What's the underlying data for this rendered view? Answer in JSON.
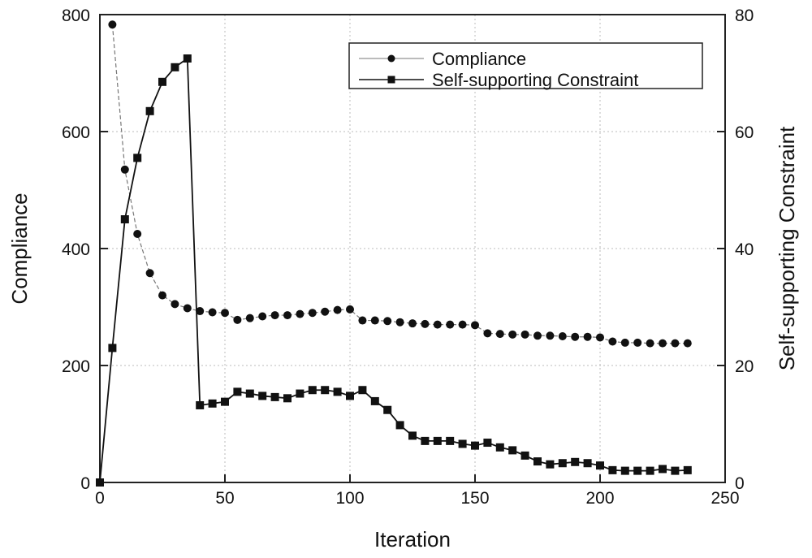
{
  "chart_data": {
    "type": "line",
    "xlabel": "Iteration",
    "ylabel": "Compliance",
    "y2label": "Self-supporting Constraint",
    "xlim": [
      0,
      250
    ],
    "ylim": [
      0,
      800
    ],
    "y2lim": [
      0,
      80
    ],
    "xticks": [
      0,
      50,
      100,
      150,
      200,
      250
    ],
    "yticks": [
      0,
      200,
      400,
      600,
      800
    ],
    "y2ticks": [
      0,
      20,
      40,
      60,
      80
    ],
    "grid": true,
    "legend": "top-right",
    "series": [
      {
        "name": "Compliance",
        "axis": "left",
        "marker": "circle",
        "color": "#777777",
        "x": [
          5,
          10,
          15,
          20,
          25,
          30,
          35,
          40,
          45,
          50,
          55,
          60,
          65,
          70,
          75,
          80,
          85,
          90,
          95,
          100,
          105,
          110,
          115,
          120,
          125,
          130,
          135,
          140,
          145,
          150,
          155,
          160,
          165,
          170,
          175,
          180,
          185,
          190,
          195,
          200,
          205,
          210,
          215,
          220,
          225,
          230,
          235
        ],
        "values": [
          783,
          535,
          425,
          358,
          320,
          305,
          298,
          293,
          291,
          290,
          278,
          281,
          284,
          286,
          286,
          288,
          290,
          292,
          295,
          296,
          277,
          277,
          276,
          274,
          272,
          271,
          270,
          270,
          270,
          269,
          255,
          254,
          253,
          253,
          251,
          251,
          250,
          249,
          249,
          248,
          241,
          239,
          239,
          238,
          238,
          238,
          238
        ]
      },
      {
        "name": "Self-supporting Constraint",
        "axis": "right",
        "marker": "square",
        "color": "#111111",
        "x": [
          0,
          5,
          10,
          15,
          20,
          25,
          30,
          35,
          40,
          45,
          50,
          55,
          60,
          65,
          70,
          75,
          80,
          85,
          90,
          95,
          100,
          105,
          110,
          115,
          120,
          125,
          130,
          135,
          140,
          145,
          150,
          155,
          160,
          165,
          170,
          175,
          180,
          185,
          190,
          195,
          200,
          205,
          210,
          215,
          220,
          225,
          230,
          235
        ],
        "values": [
          0,
          23,
          45,
          55.5,
          63.5,
          68.5,
          71,
          72.5,
          13.2,
          13.5,
          13.8,
          15.5,
          15.2,
          14.8,
          14.6,
          14.4,
          15.2,
          15.8,
          15.8,
          15.5,
          14.8,
          15.8,
          13.9,
          12.4,
          9.8,
          8,
          7.1,
          7.1,
          7.1,
          6.6,
          6.3,
          6.8,
          6,
          5.5,
          4.6,
          3.6,
          3.1,
          3.3,
          3.5,
          3.3,
          2.9,
          2.1,
          2,
          2,
          2,
          2.3,
          2,
          2.1
        ]
      }
    ]
  }
}
